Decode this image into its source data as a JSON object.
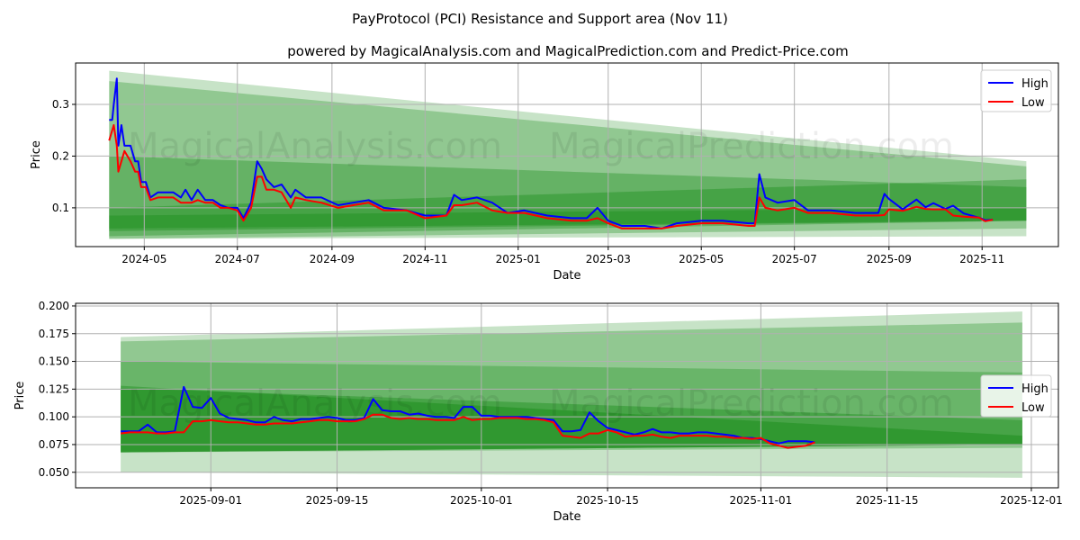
{
  "title": "PayProtocol (PCI) Resistance and Support area (Nov 11)",
  "subtitle": "powered by MagicalAnalysis.com and MagicalPrediction.com and Predict-Price.com",
  "watermarks": [
    "MagicalAnalysis.com",
    "MagicalPrediction.com"
  ],
  "colors": {
    "high": "#0000ff",
    "low": "#ff0000",
    "band": "#008000",
    "grid": "#b0b0b0"
  },
  "chart_data": [
    {
      "type": "line",
      "xlabel": "Date",
      "ylabel": "Price",
      "xlim": [
        "2024-03-17",
        "2025-12-21"
      ],
      "ylim": [
        0.025,
        0.38
      ],
      "xticks": [
        "2024-05-01",
        "2024-07-01",
        "2024-09-01",
        "2024-11-01",
        "2025-01-01",
        "2025-03-01",
        "2025-05-01",
        "2025-07-01",
        "2025-09-01",
        "2025-11-01"
      ],
      "xtick_labels": [
        "2024-05",
        "2024-07",
        "2024-09",
        "2024-11",
        "2025-01",
        "2025-03",
        "2025-05",
        "2025-07",
        "2025-09",
        "2025-11"
      ],
      "yticks": [
        0.1,
        0.2,
        0.3
      ],
      "ytick_labels": [
        "0.1",
        "0.2",
        "0.3"
      ],
      "grid": true,
      "legend": {
        "position": "top-right",
        "entries": [
          "High",
          "Low"
        ]
      },
      "bands": [
        {
          "x": [
            "2024-04-08",
            "2025-11-30"
          ],
          "start": [
            0.04,
            0.365
          ],
          "end": [
            0.045,
            0.19
          ],
          "alpha": 0.1
        },
        {
          "x": [
            "2024-04-08",
            "2025-11-30"
          ],
          "start": [
            0.04,
            0.345
          ],
          "end": [
            0.06,
            0.18
          ],
          "alpha": 0.15
        },
        {
          "x": [
            "2024-04-08",
            "2025-11-30"
          ],
          "start": [
            0.045,
            0.2
          ],
          "end": [
            0.075,
            0.14
          ],
          "alpha": 0.18
        },
        {
          "x": [
            "2024-04-08",
            "2025-11-30"
          ],
          "start": [
            0.055,
            0.1
          ],
          "end": [
            0.075,
            0.155
          ],
          "alpha": 0.18
        },
        {
          "x": [
            "2024-04-08",
            "2025-11-30"
          ],
          "start": [
            0.06,
            0.085
          ],
          "end": [
            0.075,
            0.1
          ],
          "alpha": 0.15
        }
      ],
      "series": [
        {
          "name": "High",
          "dates": [
            "2024-04-08",
            "2024-04-10",
            "2024-04-11",
            "2024-04-13",
            "2024-04-14",
            "2024-04-16",
            "2024-04-18",
            "2024-04-22",
            "2024-04-25",
            "2024-04-27",
            "2024-04-29",
            "2024-05-02",
            "2024-05-05",
            "2024-05-10",
            "2024-05-15",
            "2024-05-20",
            "2024-05-25",
            "2024-05-28",
            "2024-06-01",
            "2024-06-05",
            "2024-06-10",
            "2024-06-15",
            "2024-06-20",
            "2024-06-25",
            "2024-07-01",
            "2024-07-05",
            "2024-07-10",
            "2024-07-14",
            "2024-07-17",
            "2024-07-20",
            "2024-07-25",
            "2024-07-30",
            "2024-08-05",
            "2024-08-08",
            "2024-08-15",
            "2024-08-25",
            "2024-09-05",
            "2024-09-15",
            "2024-09-25",
            "2024-10-05",
            "2024-10-20",
            "2024-11-01",
            "2024-11-15",
            "2024-11-20",
            "2024-11-25",
            "2024-12-05",
            "2024-12-15",
            "2024-12-25",
            "2025-01-05",
            "2025-01-20",
            "2025-02-05",
            "2025-02-15",
            "2025-02-22",
            "2025-03-01",
            "2025-03-10",
            "2025-03-25",
            "2025-04-05",
            "2025-04-15",
            "2025-05-01",
            "2025-05-15",
            "2025-06-01",
            "2025-06-05",
            "2025-06-08",
            "2025-06-12",
            "2025-06-20",
            "2025-07-01",
            "2025-07-10",
            "2025-07-25",
            "2025-08-10",
            "2025-08-25",
            "2025-08-29",
            "2025-09-01",
            "2025-09-10",
            "2025-09-19",
            "2025-09-25",
            "2025-09-30",
            "2025-10-08",
            "2025-10-13",
            "2025-10-20",
            "2025-10-30",
            "2025-11-03",
            "2025-11-08"
          ],
          "values": [
            0.27,
            0.27,
            0.3,
            0.35,
            0.22,
            0.26,
            0.22,
            0.22,
            0.19,
            0.19,
            0.15,
            0.15,
            0.12,
            0.13,
            0.13,
            0.13,
            0.12,
            0.135,
            0.115,
            0.135,
            0.115,
            0.115,
            0.105,
            0.1,
            0.1,
            0.08,
            0.11,
            0.19,
            0.175,
            0.155,
            0.14,
            0.145,
            0.12,
            0.135,
            0.12,
            0.12,
            0.105,
            0.11,
            0.115,
            0.1,
            0.095,
            0.085,
            0.085,
            0.125,
            0.115,
            0.12,
            0.11,
            0.09,
            0.095,
            0.085,
            0.08,
            0.08,
            0.1,
            0.075,
            0.065,
            0.065,
            0.06,
            0.07,
            0.075,
            0.075,
            0.07,
            0.07,
            0.165,
            0.12,
            0.11,
            0.115,
            0.095,
            0.095,
            0.09,
            0.09,
            0.127,
            0.117,
            0.097,
            0.116,
            0.101,
            0.109,
            0.098,
            0.104,
            0.089,
            0.081,
            0.076,
            0.077
          ]
        },
        {
          "name": "Low",
          "dates": [
            "2024-04-08",
            "2024-04-10",
            "2024-04-11",
            "2024-04-13",
            "2024-04-14",
            "2024-04-16",
            "2024-04-18",
            "2024-04-22",
            "2024-04-25",
            "2024-04-27",
            "2024-04-29",
            "2024-05-02",
            "2024-05-05",
            "2024-05-10",
            "2024-05-15",
            "2024-05-20",
            "2024-05-25",
            "2024-05-28",
            "2024-06-01",
            "2024-06-05",
            "2024-06-10",
            "2024-06-15",
            "2024-06-20",
            "2024-06-25",
            "2024-07-01",
            "2024-07-05",
            "2024-07-10",
            "2024-07-14",
            "2024-07-17",
            "2024-07-20",
            "2024-07-25",
            "2024-07-30",
            "2024-08-05",
            "2024-08-08",
            "2024-08-15",
            "2024-08-25",
            "2024-09-05",
            "2024-09-15",
            "2024-09-25",
            "2024-10-05",
            "2024-10-20",
            "2024-11-01",
            "2024-11-15",
            "2024-11-20",
            "2024-11-25",
            "2024-12-05",
            "2024-12-15",
            "2024-12-25",
            "2025-01-05",
            "2025-01-20",
            "2025-02-05",
            "2025-02-15",
            "2025-02-22",
            "2025-03-01",
            "2025-03-10",
            "2025-03-25",
            "2025-04-05",
            "2025-04-15",
            "2025-05-01",
            "2025-05-15",
            "2025-06-01",
            "2025-06-05",
            "2025-06-08",
            "2025-06-12",
            "2025-06-20",
            "2025-07-01",
            "2025-07-10",
            "2025-07-25",
            "2025-08-10",
            "2025-08-25",
            "2025-08-29",
            "2025-09-01",
            "2025-09-10",
            "2025-09-19",
            "2025-09-25",
            "2025-09-30",
            "2025-10-08",
            "2025-10-13",
            "2025-10-20",
            "2025-10-30",
            "2025-11-03",
            "2025-11-08"
          ],
          "values": [
            0.23,
            0.25,
            0.26,
            0.22,
            0.17,
            0.19,
            0.21,
            0.19,
            0.17,
            0.17,
            0.14,
            0.14,
            0.115,
            0.12,
            0.12,
            0.12,
            0.11,
            0.11,
            0.11,
            0.115,
            0.11,
            0.11,
            0.1,
            0.1,
            0.095,
            0.075,
            0.1,
            0.16,
            0.16,
            0.135,
            0.135,
            0.13,
            0.1,
            0.12,
            0.115,
            0.11,
            0.1,
            0.105,
            0.11,
            0.095,
            0.095,
            0.08,
            0.085,
            0.105,
            0.105,
            0.11,
            0.095,
            0.09,
            0.09,
            0.08,
            0.075,
            0.075,
            0.08,
            0.07,
            0.06,
            0.06,
            0.06,
            0.065,
            0.07,
            0.07,
            0.065,
            0.065,
            0.12,
            0.1,
            0.095,
            0.1,
            0.09,
            0.09,
            0.085,
            0.085,
            0.086,
            0.097,
            0.094,
            0.102,
            0.098,
            0.097,
            0.097,
            0.085,
            0.083,
            0.081,
            0.074,
            0.077
          ]
        }
      ]
    },
    {
      "type": "line",
      "xlabel": "Date",
      "ylabel": "Price",
      "xlim": [
        "2025-08-17",
        "2025-12-04"
      ],
      "ylim": [
        0.036,
        0.2024
      ],
      "xticks": [
        "2025-09-01",
        "2025-09-15",
        "2025-10-01",
        "2025-10-15",
        "2025-11-01",
        "2025-11-15",
        "2025-12-01"
      ],
      "xtick_labels": [
        "2025-09-01",
        "2025-09-15",
        "2025-10-01",
        "2025-10-15",
        "2025-11-01",
        "2025-11-15",
        "2025-12-01"
      ],
      "yticks": [
        0.05,
        0.075,
        0.1,
        0.125,
        0.15,
        0.175,
        0.2
      ],
      "ytick_labels": [
        "0.050",
        "0.075",
        "0.100",
        "0.125",
        "0.150",
        "0.175",
        "0.200"
      ],
      "grid": true,
      "legend": {
        "position": "center-right",
        "entries": [
          "High",
          "Low"
        ]
      },
      "bands": [
        {
          "x": [
            "2025-08-22",
            "2025-11-30"
          ],
          "start": [
            0.05,
            0.172
          ],
          "end": [
            0.045,
            0.195
          ],
          "alpha": 0.1
        },
        {
          "x": [
            "2025-08-22",
            "2025-11-30"
          ],
          "start": [
            0.068,
            0.168
          ],
          "end": [
            0.072,
            0.185
          ],
          "alpha": 0.15
        },
        {
          "x": [
            "2025-08-22",
            "2025-11-30"
          ],
          "start": [
            0.068,
            0.15
          ],
          "end": [
            0.075,
            0.14
          ],
          "alpha": 0.15
        },
        {
          "x": [
            "2025-08-22",
            "2025-11-30"
          ],
          "start": [
            0.068,
            0.126
          ],
          "end": [
            0.075,
            0.097
          ],
          "alpha": 0.2
        },
        {
          "x": [
            "2025-08-22",
            "2025-11-30"
          ],
          "start": [
            0.068,
            0.128
          ],
          "end": [
            0.075,
            0.083
          ],
          "alpha": 0.2
        }
      ],
      "series_start": "2025-08-22",
      "series": [
        {
          "name": "High",
          "values": [
            0.087,
            0.087,
            0.087,
            0.093,
            0.086,
            0.086,
            0.087,
            0.127,
            0.109,
            0.108,
            0.117,
            0.103,
            0.099,
            0.098,
            0.097,
            0.095,
            0.095,
            0.1,
            0.097,
            0.096,
            0.098,
            0.098,
            0.099,
            0.1,
            0.099,
            0.097,
            0.097,
            0.099,
            0.116,
            0.106,
            0.105,
            0.105,
            0.102,
            0.103,
            0.101,
            0.1,
            0.1,
            0.099,
            0.109,
            0.109,
            0.101,
            0.101,
            0.1,
            0.1,
            0.1,
            0.1,
            0.099,
            0.098,
            0.097,
            0.087,
            0.087,
            0.088,
            0.104,
            0.096,
            0.09,
            0.088,
            0.086,
            0.084,
            0.086,
            0.089,
            0.086,
            0.086,
            0.085,
            0.085,
            0.086,
            0.086,
            0.085,
            0.084,
            0.083,
            0.081,
            0.081,
            0.08,
            0.078,
            0.076,
            0.078,
            0.078,
            0.078,
            0.077
          ]
        },
        {
          "name": "Low",
          "values": [
            0.085,
            0.086,
            0.086,
            0.086,
            0.085,
            0.085,
            0.086,
            0.086,
            0.096,
            0.096,
            0.097,
            0.096,
            0.095,
            0.095,
            0.094,
            0.093,
            0.093,
            0.094,
            0.094,
            0.094,
            0.095,
            0.096,
            0.097,
            0.097,
            0.096,
            0.096,
            0.096,
            0.098,
            0.102,
            0.102,
            0.099,
            0.098,
            0.099,
            0.098,
            0.098,
            0.097,
            0.097,
            0.097,
            0.1,
            0.097,
            0.098,
            0.098,
            0.099,
            0.099,
            0.099,
            0.098,
            0.098,
            0.097,
            0.095,
            0.083,
            0.082,
            0.081,
            0.085,
            0.085,
            0.088,
            0.086,
            0.082,
            0.083,
            0.083,
            0.084,
            0.082,
            0.081,
            0.083,
            0.083,
            0.083,
            0.083,
            0.082,
            0.082,
            0.081,
            0.081,
            0.08,
            0.081,
            0.076,
            0.074,
            0.072,
            0.073,
            0.074,
            0.077
          ]
        }
      ]
    }
  ]
}
